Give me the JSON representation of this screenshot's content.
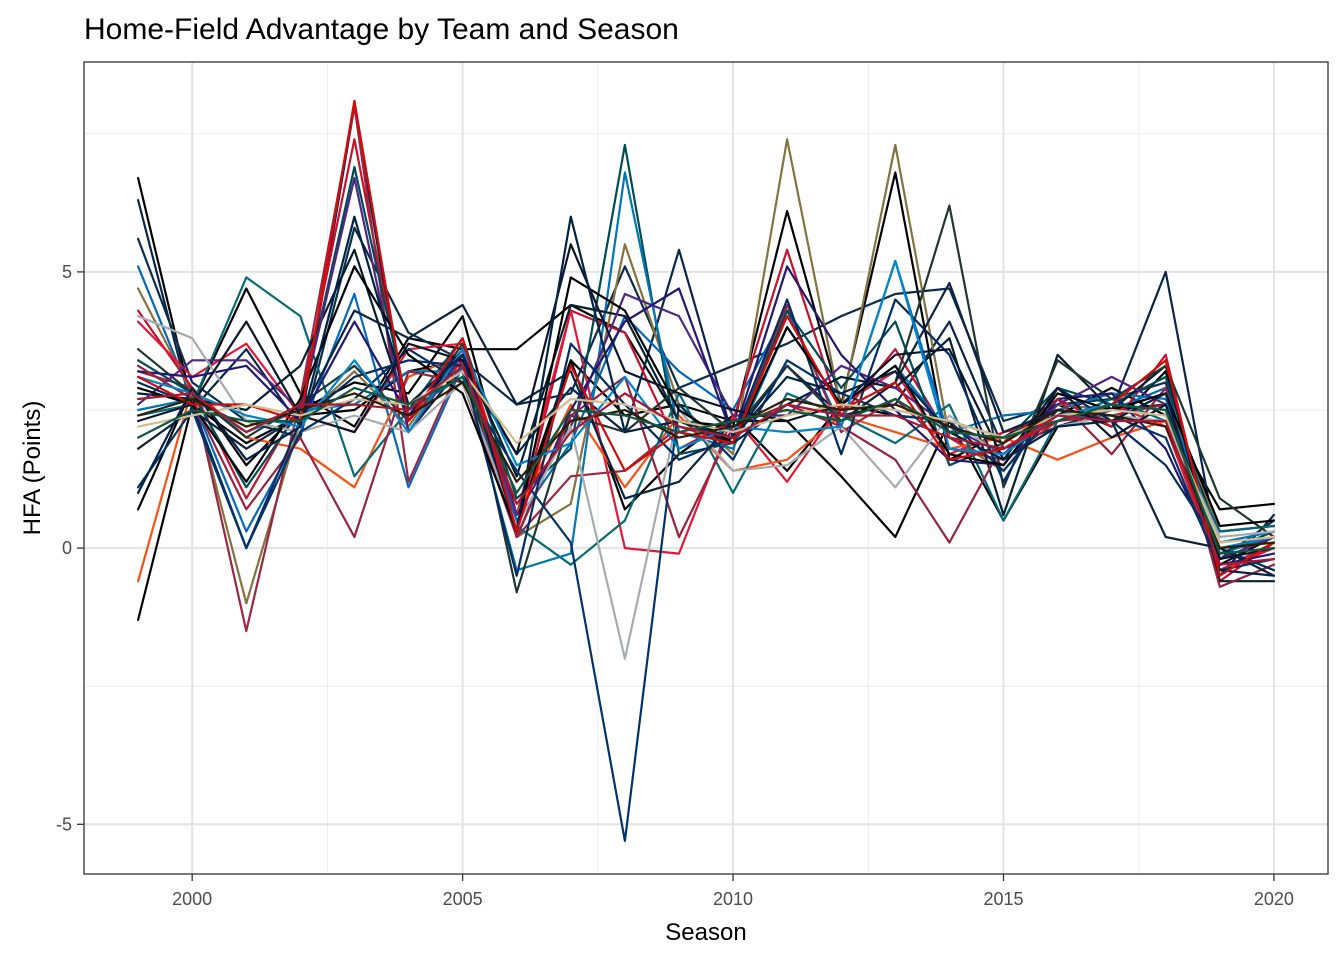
{
  "chart_data": {
    "type": "line",
    "title": "Home-Field Advantage by Team and Season",
    "xlabel": "Season",
    "ylabel": "HFA (Points)",
    "xlim": [
      1998,
      2021
    ],
    "ylim": [
      -5.9,
      8.8
    ],
    "x_ticks": [
      2000,
      2005,
      2010,
      2015,
      2020
    ],
    "y_ticks": [
      -5,
      0,
      5
    ],
    "grid": true,
    "legend": "none",
    "x": [
      1999,
      2000,
      2001,
      2002,
      2003,
      2004,
      2005,
      2006,
      2007,
      2008,
      2009,
      2010,
      2011,
      2012,
      2013,
      2014,
      2015,
      2016,
      2017,
      2018,
      2019,
      2020
    ],
    "series": [
      {
        "color": "#000000",
        "values": [
          6.7,
          2.6,
          4.7,
          2.8,
          2.2,
          3.8,
          3.6,
          3.6,
          4.4,
          3.9,
          2.3,
          2.2,
          6.1,
          2.6,
          6.8,
          1.6,
          2.1,
          2.4,
          2.9,
          2.4,
          0.7,
          0.8
        ]
      },
      {
        "color": "#000000",
        "values": [
          -1.3,
          2.6,
          1.9,
          2.4,
          2.5,
          3.2,
          3.4,
          0.4,
          3.4,
          0.7,
          1.7,
          2.4,
          1.4,
          2.6,
          2.4,
          2.3,
          0.5,
          2.2,
          2.5,
          2.6,
          0.3,
          0.4
        ]
      },
      {
        "color": "#000000",
        "values": [
          0.7,
          2.9,
          1.5,
          2.5,
          3.0,
          2.8,
          4.2,
          0.6,
          3.4,
          2.4,
          2.6,
          2.3,
          2.3,
          1.3,
          0.2,
          2.3,
          2.0,
          2.6,
          2.2,
          3.2,
          -0.3,
          0.2
        ]
      },
      {
        "color": "#08254a",
        "values": [
          6.3,
          2.5,
          3.6,
          2.2,
          8.0,
          2.1,
          3.3,
          1.7,
          2.9,
          2.1,
          5.4,
          2.0,
          3.3,
          2.4,
          2.6,
          4.1,
          1.8,
          2.2,
          2.5,
          5.0,
          -0.2,
          0.5
        ]
      },
      {
        "color": "#0b2d4b",
        "values": [
          5.6,
          3.0,
          2.3,
          2.0,
          5.8,
          3.9,
          3.4,
          2.6,
          2.8,
          5.1,
          2.9,
          3.3,
          3.7,
          4.2,
          4.6,
          4.7,
          2.3,
          2.6,
          2.7,
          3.0,
          -0.5,
          0.6
        ]
      },
      {
        "color": "#0468bf",
        "values": [
          5.1,
          2.7,
          0.3,
          2.1,
          4.6,
          1.1,
          3.3,
          0.5,
          1.9,
          4.2,
          3.2,
          2.5,
          4.3,
          2.2,
          5.2,
          2.0,
          1.8,
          2.3,
          2.5,
          2.9,
          -0.1,
          0.2
        ]
      },
      {
        "color": "#86723f",
        "values": [
          4.7,
          2.8,
          -1.0,
          2.3,
          3.2,
          2.2,
          3.6,
          0.2,
          0.8,
          5.5,
          2.6,
          1.7,
          7.4,
          2.5,
          7.3,
          2.0,
          1.4,
          2.6,
          2.5,
          2.8,
          0.3,
          0.4
        ]
      },
      {
        "color": "#c8102e",
        "values": [
          4.3,
          2.9,
          0.9,
          2.6,
          7.4,
          2.3,
          3.4,
          0.3,
          4.3,
          3.9,
          1.8,
          2.3,
          5.4,
          2.4,
          3.6,
          2.0,
          1.5,
          2.7,
          2.2,
          3.5,
          -0.6,
          0.1
        ]
      },
      {
        "color": "#e31837",
        "values": [
          4.1,
          3.1,
          3.7,
          2.4,
          2.1,
          3.6,
          3.7,
          0.6,
          4.3,
          0.0,
          -0.1,
          2.4,
          1.2,
          2.6,
          3.2,
          1.7,
          2.1,
          2.3,
          2.6,
          2.2,
          -0.4,
          0.0
        ]
      },
      {
        "color": "#fb4f14",
        "values": [
          -0.6,
          2.9,
          2.0,
          1.8,
          1.1,
          3.1,
          3.5,
          0.6,
          2.6,
          1.1,
          2.4,
          1.4,
          1.6,
          2.4,
          2.1,
          1.8,
          2.0,
          1.6,
          2.0,
          2.3,
          -0.2,
          0.2
        ]
      },
      {
        "color": "#9b2743",
        "values": [
          3.2,
          2.9,
          -1.5,
          2.7,
          8.0,
          1.2,
          3.4,
          0.2,
          1.3,
          1.4,
          2.2,
          1.9,
          4.4,
          2.1,
          2.7,
          1.8,
          1.6,
          2.3,
          2.4,
          2.6,
          -0.4,
          0.1
        ]
      },
      {
        "color": "#004c54",
        "values": [
          3.4,
          2.8,
          1.1,
          2.5,
          6.9,
          2.5,
          3.8,
          0.9,
          1.8,
          7.3,
          1.7,
          1.9,
          4.3,
          2.9,
          4.1,
          1.5,
          1.9,
          2.9,
          2.6,
          3.1,
          -0.1,
          0.3
        ]
      },
      {
        "color": "#046a77",
        "values": [
          2.4,
          2.6,
          4.9,
          4.2,
          1.3,
          2.5,
          3.1,
          0.4,
          -0.3,
          0.5,
          2.8,
          1.0,
          2.8,
          2.4,
          1.9,
          2.6,
          0.5,
          2.3,
          2.7,
          2.3,
          0.3,
          0.4
        ]
      },
      {
        "color": "#0076b6",
        "values": [
          2.5,
          2.7,
          2.1,
          2.5,
          2.6,
          3.2,
          3.2,
          -0.4,
          -0.1,
          6.8,
          2.1,
          1.8,
          4.0,
          2.6,
          3.3,
          2.1,
          2.4,
          2.5,
          2.8,
          2.7,
          0.1,
          0.3
        ]
      },
      {
        "color": "#03202f",
        "values": [
          2.8,
          2.7,
          2.5,
          3.3,
          5.4,
          2.4,
          3.5,
          1.3,
          4.4,
          4.2,
          2.3,
          1.9,
          2.6,
          3.1,
          2.9,
          3.8,
          0.6,
          3.5,
          2.5,
          3.3,
          -0.6,
          -0.6
        ]
      },
      {
        "color": "#203731",
        "values": [
          3.6,
          2.8,
          2.0,
          2.6,
          3.3,
          2.3,
          3.7,
          -0.8,
          2.4,
          2.1,
          2.9,
          2.1,
          3.3,
          2.3,
          3.0,
          6.2,
          1.1,
          3.4,
          2.7,
          3.3,
          0.9,
          0.2
        ]
      },
      {
        "color": "#4f2683",
        "values": [
          2.6,
          3.4,
          3.4,
          2.5,
          6.7,
          2.1,
          3.5,
          0.6,
          2.2,
          4.6,
          4.2,
          2.4,
          2.4,
          3.3,
          2.9,
          2.2,
          1.7,
          2.6,
          3.1,
          2.6,
          -0.2,
          0.2
        ]
      },
      {
        "color": "#241773",
        "values": [
          3.2,
          3.1,
          3.3,
          2.3,
          4.1,
          2.4,
          3.6,
          0.2,
          2.5,
          4.1,
          4.7,
          2.0,
          5.1,
          3.5,
          2.5,
          1.6,
          1.5,
          2.7,
          2.8,
          1.8,
          -0.3,
          -0.1
        ]
      },
      {
        "color": "#97233f",
        "values": [
          3.3,
          2.7,
          0.7,
          2.0,
          0.2,
          3.2,
          3.0,
          0.2,
          2.4,
          3.1,
          0.2,
          2.2,
          2.6,
          2.2,
          1.6,
          0.1,
          1.9,
          2.7,
          1.7,
          2.9,
          -0.7,
          -0.3
        ]
      },
      {
        "color": "#a5acaf",
        "values": [
          4.2,
          3.8,
          2.3,
          2.1,
          2.4,
          2.1,
          3.0,
          0.4,
          2.2,
          -2.0,
          2.5,
          1.4,
          1.5,
          2.2,
          1.1,
          2.4,
          1.6,
          2.2,
          2.4,
          2.3,
          0.2,
          0.3
        ]
      },
      {
        "color": "#002c5f",
        "values": [
          3.0,
          2.6,
          0.0,
          2.3,
          3.1,
          3.4,
          3.3,
          -0.5,
          3.7,
          2.6,
          1.6,
          2.0,
          4.5,
          1.7,
          4.5,
          3.5,
          1.2,
          2.9,
          2.3,
          1.5,
          0.0,
          -0.4
        ]
      },
      {
        "color": "#013369",
        "values": [
          1.1,
          2.5,
          0.0,
          2.1,
          2.7,
          3.6,
          3.0,
          1.4,
          0.1,
          -5.3,
          2.6,
          1.6,
          3.4,
          2.8,
          2.4,
          2.3,
          1.4,
          2.5,
          2.4,
          2.0,
          -0.4,
          -0.2
        ]
      },
      {
        "color": "#000000",
        "values": [
          2.9,
          2.6,
          1.2,
          2.7,
          5.1,
          3.5,
          2.8,
          0.3,
          4.9,
          4.3,
          2.5,
          1.9,
          4.0,
          2.6,
          3.3,
          1.7,
          1.5,
          2.8,
          2.5,
          2.8,
          0.4,
          0.5
        ]
      },
      {
        "color": "#0c2340",
        "values": [
          1.8,
          2.5,
          1.8,
          2.4,
          4.3,
          3.8,
          4.4,
          2.6,
          3.2,
          0.9,
          1.2,
          2.3,
          2.5,
          2.3,
          3.0,
          4.8,
          2.1,
          2.5,
          2.3,
          0.2,
          0.0,
          -0.5
        ]
      },
      {
        "color": "#0b162a",
        "values": [
          2.3,
          2.6,
          4.1,
          2.4,
          2.1,
          3.7,
          3.4,
          1.7,
          5.5,
          3.2,
          2.8,
          2.5,
          2.3,
          2.6,
          3.5,
          3.6,
          1.6,
          2.9,
          2.0,
          2.6,
          -0.2,
          0.0
        ]
      },
      {
        "color": "#0085ca",
        "values": [
          3.1,
          2.8,
          2.4,
          2.2,
          3.4,
          2.1,
          3.6,
          1.5,
          1.9,
          3.1,
          1.8,
          2.2,
          2.1,
          2.2,
          5.2,
          1.8,
          1.7,
          2.4,
          2.6,
          2.5,
          0.0,
          0.2
        ]
      },
      {
        "color": "#002244",
        "values": [
          1.0,
          2.9,
          1.6,
          2.2,
          6.0,
          2.6,
          3.5,
          0.3,
          6.0,
          2.1,
          2.3,
          2.0,
          3.1,
          2.8,
          3.2,
          2.1,
          1.6,
          2.2,
          2.3,
          2.8,
          -0.4,
          -0.5
        ]
      },
      {
        "color": "#d50a0a",
        "values": [
          3.1,
          2.6,
          2.6,
          2.3,
          8.1,
          2.3,
          3.8,
          0.3,
          3.3,
          1.4,
          2.1,
          1.9,
          4.2,
          2.5,
          3.0,
          1.6,
          1.8,
          2.3,
          2.6,
          3.4,
          -0.5,
          0.1
        ]
      },
      {
        "color": "#d3bc8d",
        "values": [
          2.2,
          2.4,
          2.6,
          2.4,
          2.7,
          2.6,
          3.2,
          1.9,
          2.7,
          2.6,
          2.3,
          2.1,
          2.4,
          2.6,
          2.5,
          2.3,
          2.0,
          2.4,
          2.5,
          2.4,
          0.1,
          0.2
        ]
      },
      {
        "color": "#311d00",
        "values": [
          2.4,
          2.7,
          2.2,
          2.5,
          2.8,
          2.4,
          3.0,
          1.2,
          2.3,
          2.5,
          2.0,
          2.2,
          2.7,
          2.5,
          2.6,
          2.2,
          1.9,
          2.5,
          2.4,
          2.2,
          0.0,
          0.1
        ]
      },
      {
        "color": "#125740",
        "values": [
          2.0,
          2.5,
          2.3,
          2.3,
          2.9,
          2.6,
          3.1,
          1.0,
          2.5,
          2.4,
          2.1,
          2.3,
          2.5,
          2.3,
          2.7,
          2.1,
          2.0,
          2.3,
          2.6,
          2.5,
          -0.1,
          0.0
        ]
      },
      {
        "color": "#a71930",
        "values": [
          2.7,
          2.8,
          2.1,
          2.6,
          2.6,
          2.5,
          3.3,
          0.8,
          2.1,
          2.8,
          2.2,
          2.0,
          2.6,
          2.4,
          2.4,
          2.0,
          1.8,
          2.4,
          2.3,
          2.3,
          -0.3,
          -0.2
        ]
      }
    ]
  }
}
